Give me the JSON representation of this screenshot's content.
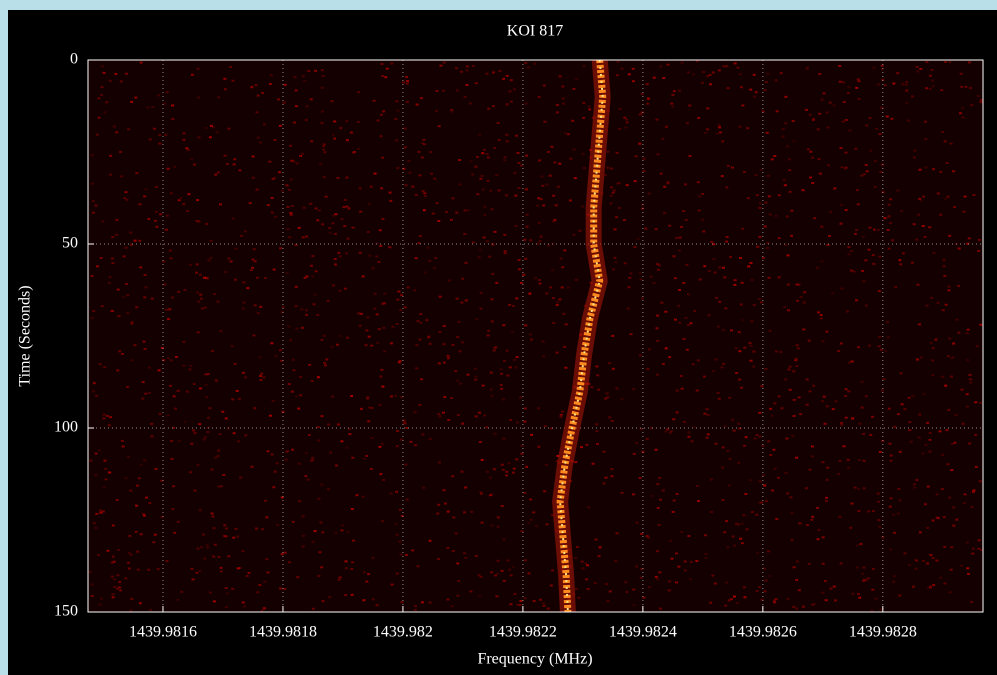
{
  "chart_data": {
    "type": "waterfall",
    "title": "KOI 817",
    "x_label": "Frequency (MHz)",
    "y_label": "Time (Seconds)",
    "xlim": [
      1439.981475,
      1439.982967
    ],
    "ylim": [
      0,
      150
    ],
    "y_inverted": true,
    "xticks": [
      1439.9816,
      1439.9818,
      1439.982,
      1439.9822,
      1439.9824,
      1439.9826,
      1439.9828
    ],
    "yticks": [
      0,
      50,
      100,
      150
    ],
    "grid": true,
    "series": [
      {
        "color": "#ff8a20",
        "x": [
          1439.982328,
          1439.982333,
          1439.982328,
          1439.982323,
          1439.982318,
          1439.982318,
          1439.982328,
          1439.982312,
          1439.982302,
          1439.982295,
          1439.982282,
          1439.98227,
          1439.982262,
          1439.982267,
          1439.982272,
          1439.982275
        ],
        "values": [
          0,
          10,
          20,
          30,
          40,
          50,
          60,
          70,
          80,
          90,
          100,
          110,
          120,
          130,
          140,
          150
        ]
      }
    ]
  }
}
